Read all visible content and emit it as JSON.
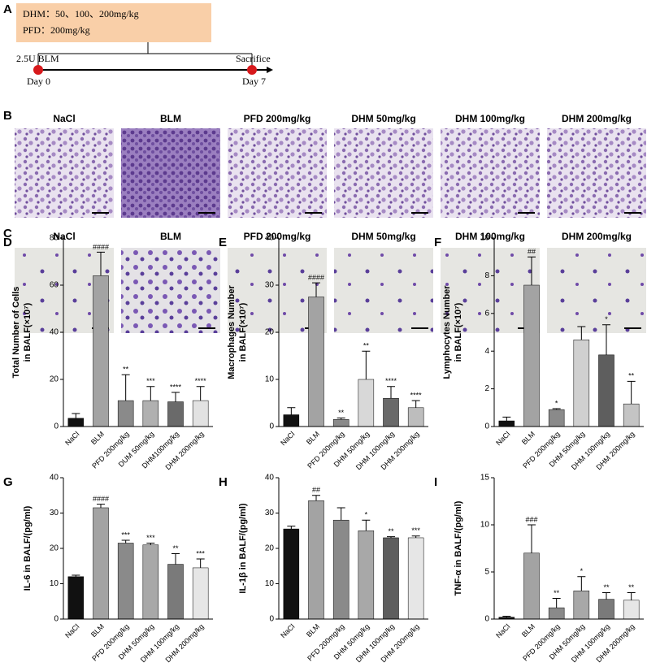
{
  "timeline": {
    "panel": "A",
    "box_lines": [
      "DHM：50、100、200mg/kg",
      "PFD：200mg/kg"
    ],
    "start_label": "2.5U BLM",
    "end_label": "Sacrifice",
    "start_day": "Day 0",
    "end_day": "Day 7"
  },
  "histology": [
    {
      "panel": "B",
      "titles": [
        "NaCl",
        "BLM",
        "PFD 200mg/kg",
        "DHM 50mg/kg",
        "DHM 100mg/kg",
        "DHM 200mg/kg"
      ]
    },
    {
      "panel": "C",
      "titles": [
        "NaCl",
        "BLM",
        "PFD 200mg/kg",
        "DHM 50mg/kg",
        "DHM 100mg/kg",
        "DHM 200mg/kg"
      ]
    }
  ],
  "chart_data": [
    {
      "type": "bar",
      "panel": "D",
      "y_label": [
        "Total Number of Cells",
        "in BALF(×10⁷)"
      ],
      "categories": [
        "NaCl",
        "BLM",
        "PFD 200mg/kg",
        "DUM 50mg/kg",
        "DHM100mg/kg",
        "DHM 200mg/kg"
      ],
      "values": [
        3.5,
        64,
        11,
        11,
        10.5,
        11
      ],
      "errors": [
        2,
        10,
        11,
        6,
        4,
        6
      ],
      "annotations": [
        null,
        "####",
        "**",
        "***",
        "****",
        "****"
      ],
      "colors": [
        "#111111",
        "#a3a3a3",
        "#8a8a8a",
        "#b0b0b0",
        "#6a6a6a",
        "#e2e2e2"
      ],
      "ylim": [
        0,
        80
      ],
      "yticks": [
        0,
        20,
        40,
        60,
        80
      ]
    },
    {
      "type": "bar",
      "panel": "E",
      "y_label": [
        "Macrophages Number",
        "in BALF(×10⁷)"
      ],
      "categories": [
        "NaCl",
        "BLM",
        "PFD 200mg/kg",
        "DHM 50mg/kg",
        "DHM 100mg/kg",
        "DHM 200mg/kg"
      ],
      "values": [
        2.5,
        27.5,
        1.5,
        10,
        6,
        4
      ],
      "errors": [
        1.5,
        3,
        0.3,
        6,
        2.5,
        1.5
      ],
      "annotations": [
        null,
        "####",
        "**",
        "**",
        "****",
        "****"
      ],
      "colors": [
        "#111111",
        "#a3a3a3",
        "#8a8a8a",
        "#d8d8d8",
        "#6a6a6a",
        "#bdbdbd"
      ],
      "ylim": [
        0,
        40
      ],
      "yticks": [
        0,
        10,
        20,
        30,
        40
      ]
    },
    {
      "type": "bar",
      "panel": "F",
      "y_label": [
        "Lymphocytes Number",
        "in BALF(×10⁷)"
      ],
      "categories": [
        "NaCl",
        "BLM",
        "PFD 200mg/kg",
        "DHM 50mg/kg",
        "DHM 100mg/kg",
        "DHM 200mg/kg"
      ],
      "values": [
        0.3,
        7.5,
        0.9,
        4.6,
        3.8,
        1.2
      ],
      "errors": [
        0.2,
        1.5,
        0.05,
        0.7,
        1.6,
        1.2
      ],
      "annotations": [
        null,
        "##",
        "*",
        null,
        "*",
        "**"
      ],
      "colors": [
        "#111111",
        "#a3a3a3",
        "#8a8a8a",
        "#d0d0d0",
        "#5e5e5e",
        "#c4c4c4"
      ],
      "ylim": [
        0,
        10
      ],
      "yticks": [
        0,
        2,
        4,
        6,
        8,
        10
      ]
    },
    {
      "type": "bar",
      "panel": "G",
      "y_label": [
        "IL-6 in BALF/(pg/ml)"
      ],
      "categories": [
        "NaCl",
        "BLM",
        "PFD 200mg/kg",
        "DHM 50mg/kg",
        "DHM 100mg/kg",
        "DHM 200mg/kg"
      ],
      "values": [
        12,
        31.5,
        21.5,
        21,
        15.5,
        14.5
      ],
      "errors": [
        0.4,
        1,
        0.8,
        0.5,
        3,
        2.5
      ],
      "annotations": [
        null,
        "####",
        "***",
        "***",
        "**",
        "***"
      ],
      "colors": [
        "#111111",
        "#a3a3a3",
        "#8a8a8a",
        "#a8a8a8",
        "#7a7a7a",
        "#e6e6e6"
      ],
      "ylim": [
        0,
        40
      ],
      "yticks": [
        0,
        10,
        20,
        30,
        40
      ]
    },
    {
      "type": "bar",
      "panel": "H",
      "y_label": [
        "IL-1β in BALF/(pg/ml)"
      ],
      "categories": [
        "NaCl",
        "BLM",
        "PFD 200mg/kg",
        "DHM 50mg/kg",
        "DHM 100mg/kg",
        "DHM 200mg/kg"
      ],
      "values": [
        25.5,
        33.5,
        28,
        25,
        23,
        23
      ],
      "errors": [
        0.8,
        1.5,
        3.5,
        3,
        0.3,
        0.5
      ],
      "annotations": [
        null,
        "##",
        null,
        "*",
        "**",
        "***"
      ],
      "colors": [
        "#111111",
        "#a3a3a3",
        "#8a8a8a",
        "#a8a8a8",
        "#5e5e5e",
        "#e6e6e6"
      ],
      "ylim": [
        0,
        40
      ],
      "yticks": [
        0,
        10,
        20,
        30,
        40
      ]
    },
    {
      "type": "bar",
      "panel": "I",
      "y_label": [
        "TNF-α in BALF/(pg/ml)"
      ],
      "categories": [
        "NaCl",
        "BLM",
        "PFD 200mg/kg",
        "DHM 50mg/kg",
        "DHM 100mg/kg",
        "DHM 200mg/kg"
      ],
      "values": [
        0.2,
        7,
        1.2,
        3,
        2.1,
        2
      ],
      "errors": [
        0.1,
        3,
        1,
        1.5,
        0.7,
        0.8
      ],
      "annotations": [
        null,
        "###",
        "**",
        "*",
        "**",
        "**"
      ],
      "colors": [
        "#111111",
        "#a3a3a3",
        "#8a8a8a",
        "#a8a8a8",
        "#7a7a7a",
        "#e6e6e6"
      ],
      "ylim": [
        0,
        15
      ],
      "yticks": [
        0,
        5,
        10,
        15
      ]
    }
  ]
}
